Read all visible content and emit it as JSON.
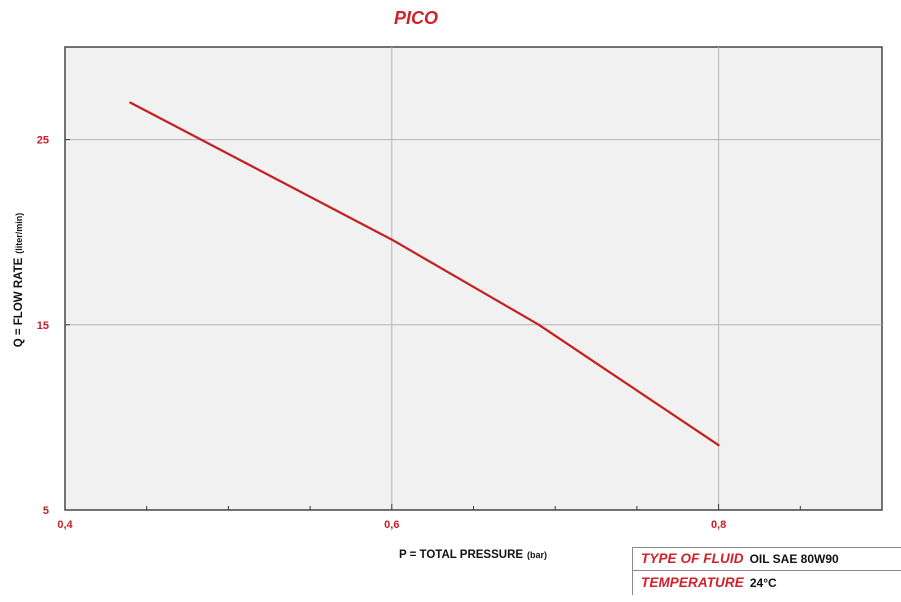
{
  "colors": {
    "accent": "#d0202a",
    "series_line": "#c41e1e",
    "plot_background": "#f1f1f1",
    "grid": "#b4b4b4",
    "axis": "#3a3a3a"
  },
  "chart_data": {
    "type": "line",
    "title": "PICO",
    "xlabel": "P = TOTAL PRESSURE",
    "xlabel_unit": "(bar)",
    "ylabel": "Q = FLOW RATE",
    "ylabel_unit": "(liter/min)",
    "xlim": [
      0.4,
      0.9
    ],
    "ylim": [
      5,
      30
    ],
    "x_ticks": [
      0.4,
      0.6,
      0.8
    ],
    "x_tick_labels": [
      "0,4",
      "0,6",
      "0,8"
    ],
    "y_ticks": [
      5,
      15,
      25
    ],
    "y_tick_labels": [
      "5",
      "15",
      "25"
    ],
    "x_minor_ticks": [
      0.45,
      0.5,
      0.55,
      0.65,
      0.7,
      0.75,
      0.85
    ],
    "x_gridlines": [
      0.6,
      0.8
    ],
    "grid": true,
    "legend": "none",
    "series": [
      {
        "x": [
          0.44,
          0.6,
          0.69,
          0.8
        ],
        "y": [
          27.0,
          19.6,
          15.0,
          8.5
        ]
      }
    ]
  },
  "fluid_info": {
    "type_label": "TYPE OF FLUID",
    "type_value": "OIL SAE 80W90",
    "temp_label": "TEMPERATURE",
    "temp_value": "24°C"
  }
}
